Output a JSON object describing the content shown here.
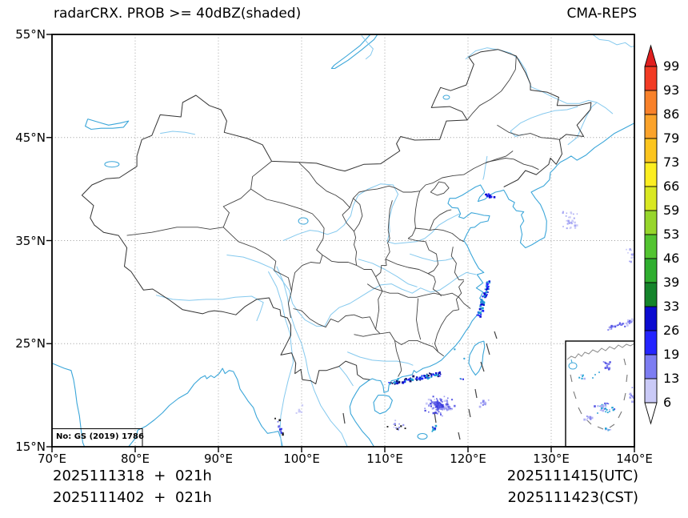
{
  "header": {
    "title": "radarCRX. PROB >= 40dBZ(shaded)",
    "model": "CMA-REPS"
  },
  "map": {
    "license": "No: GS (2019) 1786"
  },
  "axes": {
    "x_tick_labels": [
      "70°E",
      "80°E",
      "90°E",
      "100°E",
      "110°E",
      "120°E",
      "130°E",
      "140°E"
    ],
    "y_tick_labels": [
      "55°N",
      "45°N",
      "35°N",
      "25°N",
      "15°N"
    ]
  },
  "colorbar": {
    "tick_labels": [
      "99",
      "93",
      "86",
      "79",
      "73",
      "66",
      "59",
      "53",
      "46",
      "39",
      "33",
      "26",
      "19",
      "13",
      "6"
    ],
    "segment_colors_top_to_bottom": [
      "#f23b24",
      "#f8812a",
      "#fba32b",
      "#fcc51e",
      "#fcee21",
      "#d9e822",
      "#97d62c",
      "#53c431",
      "#2fae2f",
      "#15842b",
      "#0b0bd0",
      "#2424ff",
      "#7d7df2",
      "#cacaf7"
    ],
    "extend_over_color": "#e01f1f",
    "extend_under_color": "#ffffff"
  },
  "footer": {
    "init_lines": [
      "2025111318 + 021h",
      "2025111402 + 021h"
    ],
    "valid_lines": [
      "2025111415(UTC)",
      "2025111423(CST)"
    ]
  },
  "colors": {
    "coast": "#3ba6d9",
    "river": "#85c9ee",
    "national_border": "#333333",
    "province_border": "#424242",
    "grid": "#9a9a9a",
    "frame": "#000000",
    "inset_coast": "#8a8a8a",
    "dash_line": "#444444"
  }
}
